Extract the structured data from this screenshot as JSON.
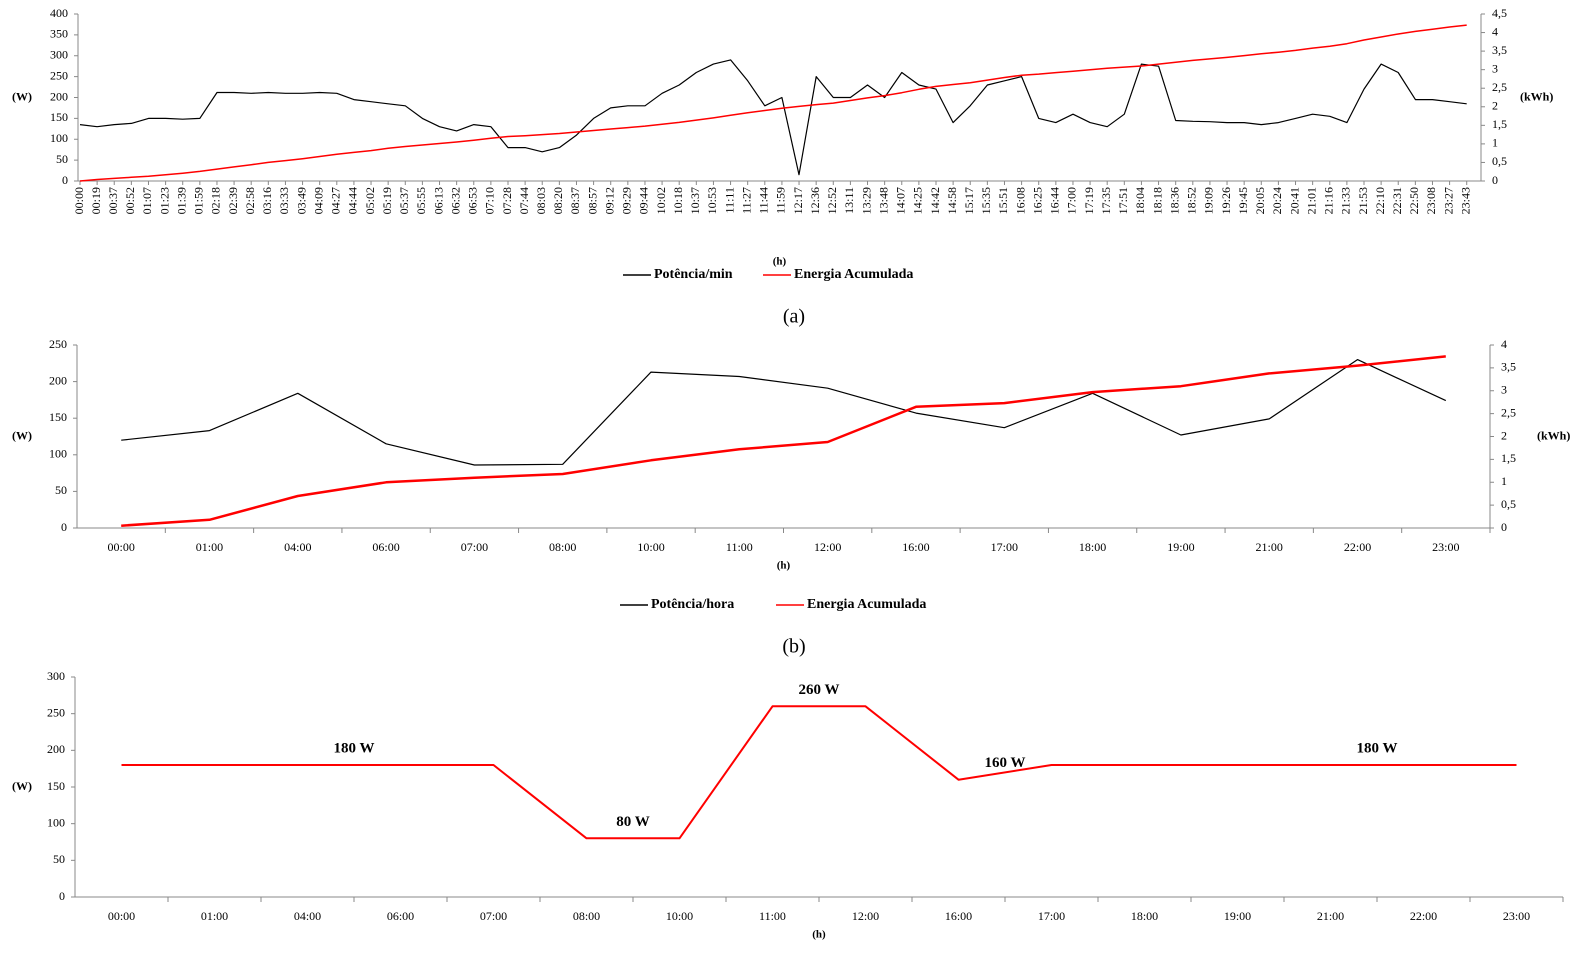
{
  "chart_data": [
    {
      "type": "line",
      "caption": "(a)",
      "x_label": "(h)",
      "y_label": "(W)",
      "y2_label": "(kWh)",
      "categories": [
        "00:00",
        "00:19",
        "00:37",
        "00:52",
        "01:07",
        "01:23",
        "01:39",
        "01:59",
        "02:18",
        "02:39",
        "02:58",
        "03:16",
        "03:33",
        "03:49",
        "04:09",
        "04:27",
        "04:44",
        "05:02",
        "05:19",
        "05:37",
        "05:55",
        "06:13",
        "06:32",
        "06:53",
        "07:10",
        "07:28",
        "07:44",
        "08:03",
        "08:20",
        "08:37",
        "08:57",
        "09:12",
        "09:29",
        "09:44",
        "10:02",
        "10:18",
        "10:37",
        "10:53",
        "11:11",
        "11:27",
        "11:44",
        "11:59",
        "12:17",
        "12:36",
        "12:52",
        "13:11",
        "13:29",
        "13:48",
        "14:07",
        "14:25",
        "14:42",
        "14:58",
        "15:17",
        "15:35",
        "15:51",
        "16:08",
        "16:25",
        "16:44",
        "17:00",
        "17:19",
        "17:35",
        "17:51",
        "18:04",
        "18:18",
        "18:36",
        "18:52",
        "19:09",
        "19:26",
        "19:45",
        "20:05",
        "20:24",
        "20:41",
        "21:01",
        "21:16",
        "21:33",
        "21:53",
        "22:10",
        "22:31",
        "22:50",
        "23:08",
        "23:27",
        "23:43"
      ],
      "series": [
        {
          "name": "Potência/min",
          "color": "#000000",
          "axis": "y",
          "values": [
            135,
            130,
            135,
            138,
            150,
            150,
            148,
            150,
            212,
            212,
            210,
            212,
            210,
            210,
            212,
            210,
            195,
            190,
            185,
            180,
            150,
            130,
            120,
            135,
            130,
            80,
            80,
            70,
            80,
            110,
            150,
            175,
            180,
            180,
            210,
            230,
            260,
            280,
            290,
            240,
            180,
            200,
            15,
            250,
            200,
            200,
            230,
            200,
            260,
            230,
            220,
            140,
            180,
            230,
            240,
            250,
            150,
            140,
            160,
            140,
            130,
            160,
            280,
            275,
            145,
            143,
            142,
            140,
            140,
            135,
            140,
            150,
            160,
            155,
            140,
            220,
            280,
            260,
            195,
            195,
            190,
            185
          ]
        },
        {
          "name": "Energia Acumulada",
          "color": "#ff0000",
          "axis": "y2",
          "values": [
            0,
            0.04,
            0.07,
            0.1,
            0.13,
            0.17,
            0.21,
            0.26,
            0.32,
            0.38,
            0.44,
            0.5,
            0.55,
            0.6,
            0.66,
            0.72,
            0.77,
            0.82,
            0.88,
            0.93,
            0.97,
            1.01,
            1.05,
            1.1,
            1.15,
            1.2,
            1.22,
            1.25,
            1.28,
            1.32,
            1.36,
            1.4,
            1.44,
            1.48,
            1.53,
            1.58,
            1.64,
            1.7,
            1.77,
            1.84,
            1.9,
            1.96,
            2.01,
            2.06,
            2.1,
            2.17,
            2.24,
            2.3,
            2.38,
            2.47,
            2.55,
            2.6,
            2.65,
            2.72,
            2.79,
            2.85,
            2.88,
            2.92,
            2.96,
            3.0,
            3.04,
            3.07,
            3.1,
            3.15,
            3.2,
            3.25,
            3.29,
            3.33,
            3.38,
            3.43,
            3.47,
            3.52,
            3.58,
            3.63,
            3.7,
            3.8,
            3.88,
            3.96,
            4.03,
            4.09,
            4.15,
            4.2
          ]
        }
      ],
      "ylim": [
        0,
        400
      ],
      "yticks": [
        0,
        50,
        100,
        150,
        200,
        250,
        300,
        350,
        400
      ],
      "y2lim": [
        0,
        4.5
      ],
      "y2ticks": [
        0,
        {
          "value": 0.5,
          "label": "0,5"
        },
        1,
        {
          "value": 1.5,
          "label": "1,5"
        },
        2,
        {
          "value": 2.5,
          "label": "2,5"
        },
        3,
        {
          "value": 3.5,
          "label": "3,5"
        },
        4,
        {
          "value": 4.5,
          "label": "4,5"
        }
      ]
    },
    {
      "type": "line",
      "caption": "(b)",
      "x_label": "(h)",
      "y_label": "(W)",
      "y2_label": "(kWh)",
      "categories": [
        "00:00",
        "01:00",
        "04:00",
        "06:00",
        "07:00",
        "08:00",
        "10:00",
        "11:00",
        "12:00",
        "16:00",
        "17:00",
        "18:00",
        "19:00",
        "21:00",
        "22:00",
        "23:00"
      ],
      "series": [
        {
          "name": "Potência/hora",
          "color": "#000000",
          "axis": "y",
          "values": [
            120,
            133,
            184,
            115,
            86,
            87,
            213,
            207,
            191,
            157,
            137,
            184,
            127,
            149,
            230,
            174
          ]
        },
        {
          "name": "Energia Acumulada",
          "color": "#ff0000",
          "axis": "y2",
          "values": [
            0.05,
            0.18,
            0.7,
            1.0,
            1.1,
            1.18,
            1.48,
            1.72,
            1.88,
            2.65,
            2.73,
            2.97,
            3.1,
            3.38,
            3.55,
            3.75
          ]
        }
      ],
      "ylim": [
        0,
        250
      ],
      "yticks": [
        0,
        50,
        100,
        150,
        200,
        250
      ],
      "y2lim": [
        0,
        4
      ],
      "y2ticks": [
        0,
        {
          "value": 0.5,
          "label": "0,5"
        },
        1,
        {
          "value": 1.5,
          "label": "1,5"
        },
        2,
        {
          "value": 2.5,
          "label": "2,5"
        },
        3,
        {
          "value": 3.5,
          "label": "3,5"
        },
        4
      ]
    },
    {
      "type": "line",
      "x_label": "(h)",
      "y_label": "(W)",
      "color": "#ff0000",
      "categories": [
        "00:00",
        "01:00",
        "04:00",
        "06:00",
        "07:00",
        "08:00",
        "10:00",
        "11:00",
        "12:00",
        "16:00",
        "17:00",
        "18:00",
        "19:00",
        "21:00",
        "22:00",
        "23:00"
      ],
      "values": [
        180,
        180,
        180,
        180,
        180,
        80,
        80,
        260,
        260,
        160,
        180,
        180,
        180,
        180,
        180,
        180
      ],
      "value_labels": [
        null,
        null,
        "180 W",
        null,
        null,
        "80 W",
        null,
        "260 W",
        null,
        "160 W",
        null,
        null,
        null,
        "180 W",
        null,
        null
      ],
      "ylim": [
        0,
        300
      ],
      "yticks": [
        0,
        50,
        100,
        150,
        200,
        250,
        300
      ]
    }
  ]
}
